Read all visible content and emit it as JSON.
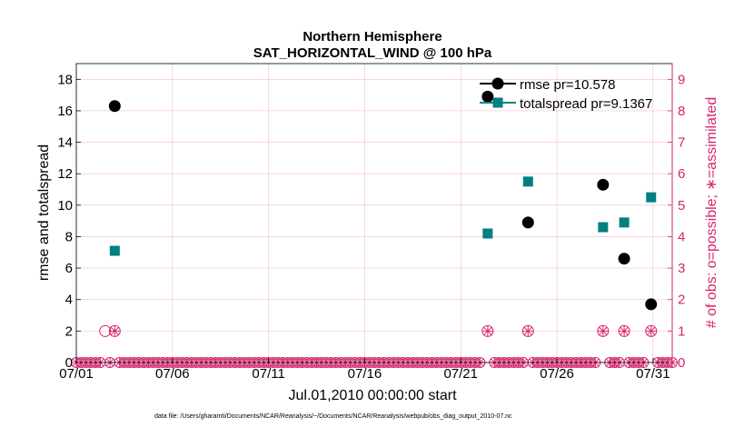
{
  "chart_data": {
    "type": "scatter",
    "title": "Northern Hemisphere",
    "subtitle": "SAT_HORIZONTAL_WIND @ 100 hPa",
    "xlabel": "Jul.01,2010 00:00:00 start",
    "ylabel": "rmse and totalspread",
    "ylabel_right": "# of obs: o=possible; ∗=assimilated",
    "footer": "data file: /Users/gharamti/Documents/NCAR/Reanalysis/~/Documents/NCAR/Reanalysis/webpub/obs_diag_output_2010-07.nc",
    "xlim": [
      1,
      32
    ],
    "ylim": [
      0,
      19
    ],
    "ylim_right": [
      0,
      9.5
    ],
    "x_ticks": [
      1,
      6,
      11,
      16,
      21,
      26,
      31
    ],
    "x_tick_labels": [
      "07/01",
      "07/06",
      "07/11",
      "07/16",
      "07/21",
      "07/26",
      "07/31"
    ],
    "y_ticks": [
      0,
      2,
      4,
      6,
      8,
      10,
      12,
      14,
      16,
      18
    ],
    "y_tick_labels": [
      "0",
      "2",
      "4",
      "6",
      "8",
      "10",
      "12",
      "14",
      "16",
      "18"
    ],
    "y_ticks_right": [
      0,
      1,
      2,
      3,
      4,
      5,
      6,
      7,
      8,
      9
    ],
    "y_tick_labels_right": [
      "0",
      "1",
      "2",
      "3",
      "4",
      "5",
      "6",
      "7",
      "8",
      "9"
    ],
    "grid": true,
    "legend_position": "top-right",
    "colors": {
      "rmse": "#000000",
      "totalspread": "#008080",
      "obs": "#d6246e"
    },
    "series": [
      {
        "name": "rmse",
        "label": "rmse pr=10.578",
        "marker": "circle",
        "x": [
          3.0,
          22.4,
          24.5,
          28.4,
          29.5,
          30.9
        ],
        "values": [
          16.3,
          16.9,
          8.9,
          11.3,
          6.6,
          3.7
        ]
      },
      {
        "name": "totalspread",
        "label": "totalspread pr=9.1367",
        "marker": "square",
        "x": [
          3.0,
          22.4,
          24.5,
          28.4,
          29.5,
          30.9
        ],
        "values": [
          7.1,
          8.2,
          11.5,
          8.6,
          8.9,
          10.5
        ]
      }
    ],
    "obs_possible_x": [
      2.5,
      3.0,
      22.4,
      24.5,
      28.4,
      29.5,
      30.9
    ],
    "obs_possible_count": 1,
    "obs_assimilated_x": [
      3.0,
      22.4,
      24.5,
      28.4,
      29.5,
      30.9
    ],
    "obs_assimilated_count": 1,
    "obs_zero_spacing_days": 0.25
  }
}
